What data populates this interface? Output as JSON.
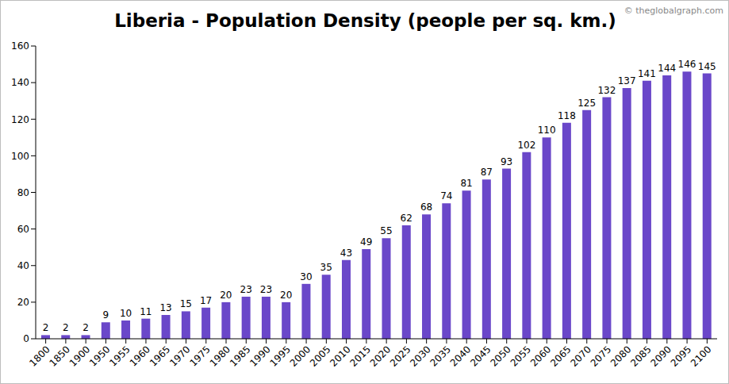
{
  "chart_data": {
    "type": "bar",
    "title": "Liberia - Population Density (people per sq. km.)",
    "source": "© theglobalgraph.com",
    "categories": [
      "1800",
      "1850",
      "1900",
      "1950",
      "1955",
      "1960",
      "1965",
      "1970",
      "1975",
      "1980",
      "1985",
      "1990",
      "1995",
      "2000",
      "2005",
      "2010",
      "2015",
      "2020",
      "2025",
      "2030",
      "2035",
      "2040",
      "2045",
      "2050",
      "2055",
      "2060",
      "2065",
      "2070",
      "2075",
      "2080",
      "2085",
      "2090",
      "2095",
      "2100"
    ],
    "values": [
      2,
      2,
      2,
      9,
      10,
      11,
      13,
      15,
      17,
      20,
      23,
      23,
      20,
      30,
      35,
      43,
      49,
      55,
      62,
      68,
      74,
      81,
      87,
      93,
      102,
      110,
      118,
      125,
      132,
      137,
      141,
      144,
      146,
      145
    ],
    "color": "#6a47c9",
    "ylim": [
      0,
      160
    ],
    "yticks": [
      0,
      20,
      40,
      60,
      80,
      100,
      120,
      140,
      160
    ],
    "grid": false,
    "data_labels": true
  }
}
